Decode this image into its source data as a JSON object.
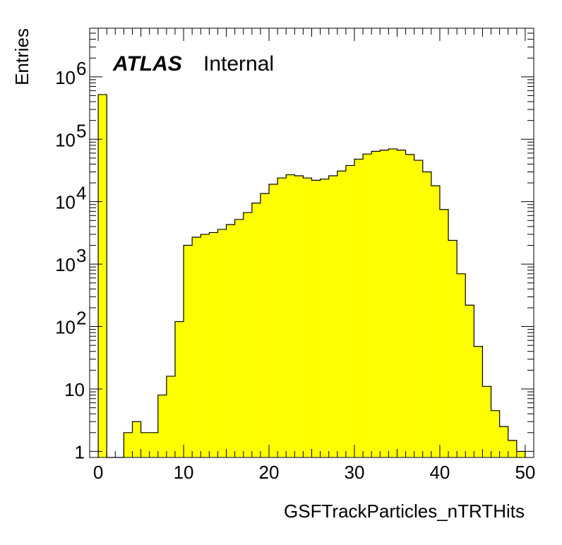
{
  "chart_data": {
    "type": "bar",
    "style": "histogram",
    "fill_color": "#ffff00",
    "line_color": "#000000",
    "xlabel": "GSFTrackParticles_nTRTHits",
    "ylabel": "Entries",
    "label": {
      "experiment": "ATLAS",
      "status": "Internal"
    },
    "log_y": true,
    "xlim": [
      -1,
      51
    ],
    "ylim": [
      0.8,
      6000000
    ],
    "x_ticks": [
      0,
      10,
      20,
      30,
      40,
      50
    ],
    "x_tick_labels": [
      "0",
      "10",
      "20",
      "30",
      "40",
      "50"
    ],
    "y_ticks": [
      1,
      10,
      100,
      1000,
      10000,
      100000,
      1000000
    ],
    "y_tick_labels": [
      {
        "base": "1",
        "exp": ""
      },
      {
        "base": "10",
        "exp": ""
      },
      {
        "base": "10",
        "exp": "2"
      },
      {
        "base": "10",
        "exp": "3"
      },
      {
        "base": "10",
        "exp": "4"
      },
      {
        "base": "10",
        "exp": "5"
      },
      {
        "base": "10",
        "exp": "6"
      }
    ],
    "bin_width": 1,
    "bin_edges_start": 0,
    "values": [
      520000,
      0,
      0,
      2,
      3,
      2,
      2,
      8,
      16,
      120,
      2000,
      2700,
      3000,
      3200,
      3600,
      4300,
      5200,
      6700,
      9500,
      13500,
      19000,
      24000,
      27000,
      26000,
      24000,
      22000,
      23000,
      26000,
      31000,
      38000,
      48000,
      58000,
      64000,
      67000,
      70000,
      67000,
      57000,
      46000,
      30000,
      18000,
      7500,
      2400,
      700,
      220,
      48,
      11,
      4.5,
      2.5,
      1.5,
      1
    ]
  }
}
